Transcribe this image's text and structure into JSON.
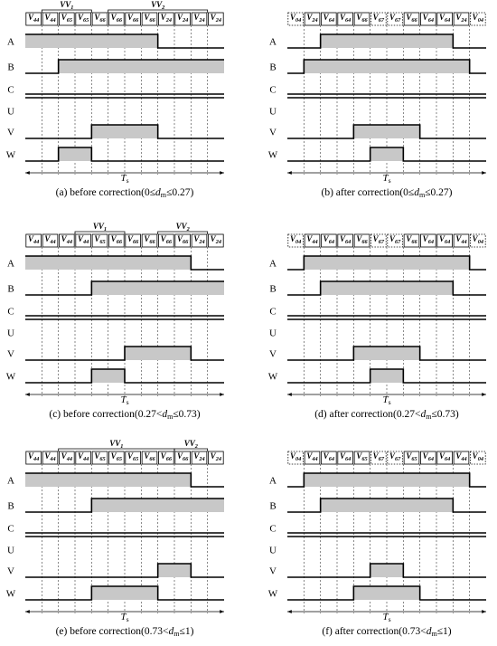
{
  "panels": [
    {
      "caption": "(a) before correction(0≤dm≤0.27)",
      "vectors": [
        "V44",
        "V44",
        "V65",
        "V65",
        "V66",
        "V66",
        "V66",
        "V66",
        "V24",
        "V24",
        "V24",
        "V24"
      ],
      "groups": [
        {
          "label": "VV1"
        },
        {
          "label": "VV2"
        }
      ],
      "signals": [
        "A",
        "B",
        "C",
        "U",
        "V",
        "W"
      ],
      "period": "Ts"
    },
    {
      "caption": "(b) after correction(0≤dm≤0.27)",
      "vectors": [
        "V04",
        "V24",
        "V64",
        "V64",
        "V66",
        "V67",
        "V67",
        "V66",
        "V64",
        "V64",
        "V24",
        "V04"
      ],
      "groups": [],
      "signals": [
        "A",
        "B",
        "C",
        "U",
        "V",
        "W"
      ],
      "period": "Ts"
    },
    {
      "caption": "(c) before correction(0.27<dm≤0.73)",
      "vectors": [
        "V44",
        "V44",
        "V44",
        "V44",
        "V65",
        "V66",
        "V66",
        "V66",
        "V66",
        "V66",
        "V24",
        "V24"
      ],
      "groups": [
        {
          "label": "VV1"
        },
        {
          "label": "VV2"
        }
      ],
      "signals": [
        "A",
        "B",
        "C",
        "U",
        "V",
        "W"
      ],
      "period": "Ts"
    },
    {
      "caption": "(d) after correction(0.27<dm≤0.73)",
      "vectors": [
        "V04",
        "V44",
        "V64",
        "V64",
        "V66",
        "V67",
        "V67",
        "V66",
        "V64",
        "V64",
        "V44",
        "V04"
      ],
      "groups": [],
      "signals": [
        "A",
        "B",
        "C",
        "U",
        "V",
        "W"
      ],
      "period": "Ts"
    },
    {
      "caption": "(e) before correction(0.73<dm≤1)",
      "vectors": [
        "V44",
        "V44",
        "V44",
        "V44",
        "V65",
        "V65",
        "V65",
        "V66",
        "V66",
        "V66",
        "V24",
        "V24"
      ],
      "groups": [
        {
          "label": "VV1"
        },
        {
          "label": "VV2"
        }
      ],
      "signals": [
        "A",
        "B",
        "C",
        "U",
        "V",
        "W"
      ],
      "period": "Ts"
    },
    {
      "caption": "(f) after correction(0.73<dm≤1)",
      "vectors": [
        "V04",
        "V44",
        "V64",
        "V64",
        "V65",
        "V67",
        "V67",
        "V65",
        "V64",
        "V64",
        "V44",
        "V04"
      ],
      "groups": [],
      "signals": [
        "A",
        "B",
        "C",
        "U",
        "V",
        "W"
      ],
      "period": "Ts"
    }
  ]
}
